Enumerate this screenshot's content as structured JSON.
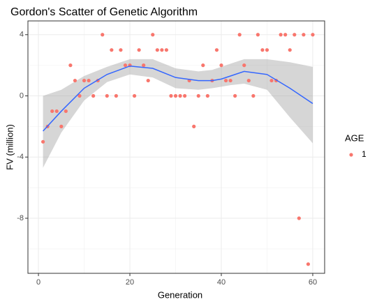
{
  "chart_data": {
    "type": "scatter",
    "title": "Gordon's Scatter of Genetic Algorithm",
    "x_label": "Generation",
    "y_label": "FV (million)",
    "legend_title": "AGE",
    "series": [
      {
        "name": "1",
        "color": "#F8766D",
        "x": [
          1,
          2,
          3,
          4,
          5,
          6,
          7,
          8,
          9,
          10,
          11,
          12,
          13,
          14,
          15,
          16,
          17,
          18,
          19,
          20,
          21,
          22,
          23,
          24,
          25,
          26,
          27,
          28,
          29,
          30,
          31,
          32,
          33,
          34,
          35,
          36,
          37,
          38,
          39,
          40,
          41,
          42,
          43,
          44,
          45,
          46,
          47,
          48,
          49,
          50,
          51,
          52,
          53,
          54,
          55,
          56,
          57,
          58,
          59,
          60
        ],
        "values": [
          -3,
          -2,
          -1,
          -1,
          -2,
          -1,
          2,
          1,
          0,
          1,
          1,
          0,
          1,
          4,
          0,
          3,
          0,
          3,
          2,
          2,
          0,
          3,
          2,
          1,
          4,
          3,
          3,
          3,
          0,
          0,
          0,
          0,
          1,
          -2,
          0,
          2,
          0,
          1,
          3,
          2,
          1,
          1,
          0,
          4,
          2,
          1,
          0,
          4,
          3,
          3,
          1,
          1,
          4,
          4,
          3,
          4,
          -8,
          4,
          -11,
          4
        ]
      }
    ],
    "smooth": {
      "color": "#3366FF",
      "band_color": "#999999",
      "x": [
        1,
        5,
        10,
        15,
        20,
        25,
        30,
        35,
        38,
        40,
        42,
        45,
        50,
        55,
        60
      ],
      "values": [
        -2.3,
        -1.0,
        0.5,
        1.4,
        1.95,
        1.8,
        1.2,
        1.0,
        1.0,
        1.1,
        1.3,
        1.6,
        1.4,
        0.5,
        -0.5
      ],
      "lower": [
        -4.7,
        -2.4,
        -0.3,
        0.9,
        1.4,
        1.2,
        0.5,
        0.4,
        0.5,
        0.6,
        0.7,
        0.8,
        0.4,
        -1.4,
        -3.1
      ],
      "upper": [
        0.0,
        0.4,
        1.3,
        1.9,
        2.4,
        2.4,
        1.8,
        1.6,
        1.7,
        1.9,
        2.1,
        2.4,
        2.4,
        2.2,
        1.9
      ]
    },
    "xlim": [
      -2.3,
      62.6
    ],
    "ylim": [
      -11.6,
      4.9
    ],
    "xticks": [
      0,
      20,
      40,
      60
    ],
    "yticks": [
      -8,
      -4,
      0,
      4
    ],
    "minor_xticks": [
      10,
      30,
      50
    ],
    "minor_yticks": [
      -10,
      -6,
      -2,
      2
    ],
    "grid": true
  }
}
